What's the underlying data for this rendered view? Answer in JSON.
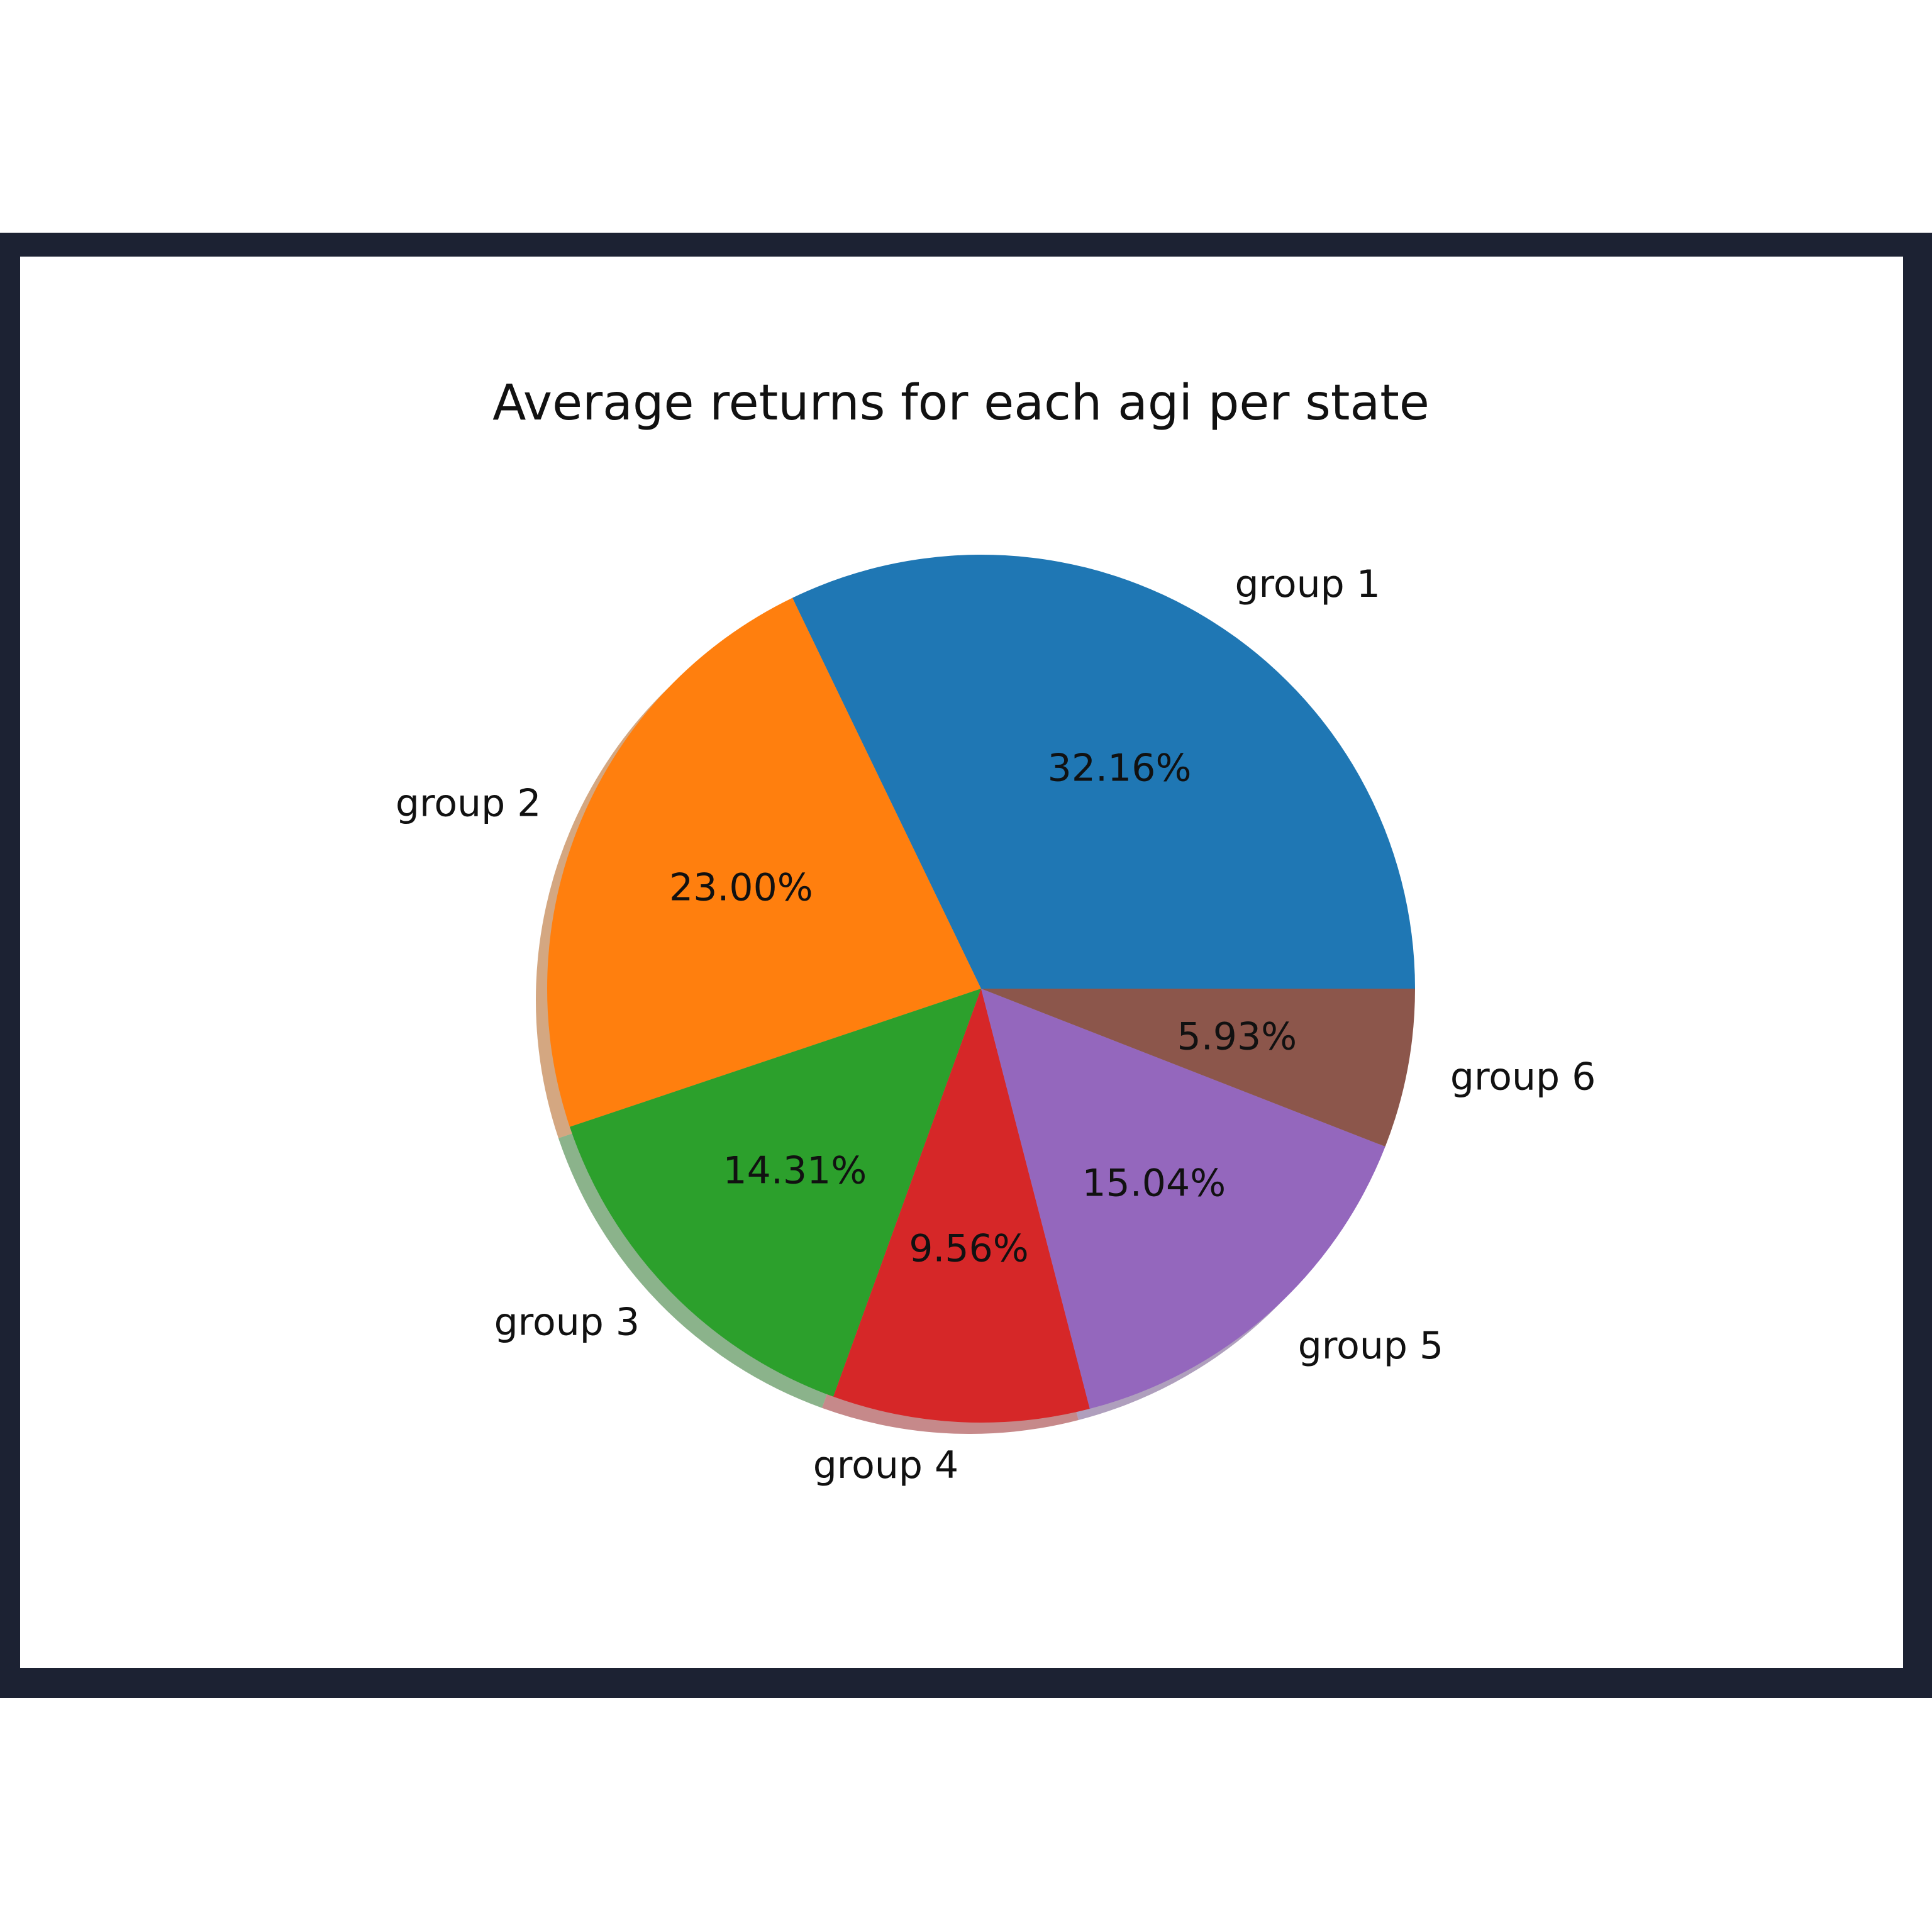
{
  "chart_data": {
    "type": "pie",
    "title": "Average returns for each agi per state",
    "categories": [
      "group 1",
      "group 2",
      "group 3",
      "group 4",
      "group 5",
      "group 6"
    ],
    "values": [
      32.16,
      23.0,
      14.31,
      9.56,
      15.04,
      5.93
    ],
    "value_labels": [
      "32.16%",
      "23.00%",
      "14.31%",
      "9.56%",
      "15.04%",
      "5.93%"
    ],
    "colors": [
      "#1f77b4",
      "#ff7f0e",
      "#2ca02c",
      "#d62728",
      "#9467bd",
      "#8c564b"
    ],
    "shadow": true,
    "start_angle": 0,
    "direction": "counterclockwise"
  }
}
